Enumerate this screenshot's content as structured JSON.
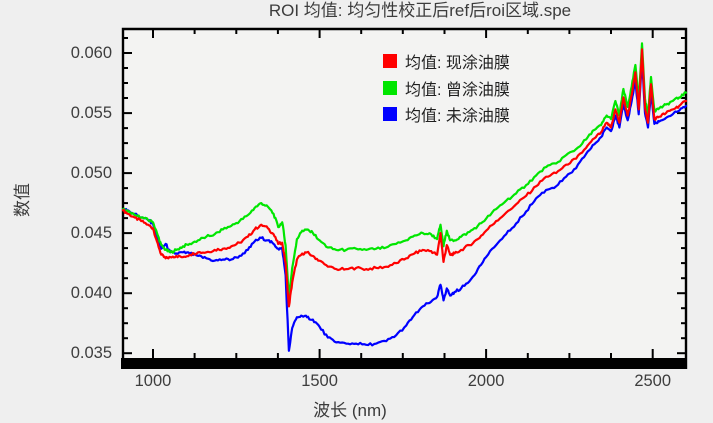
{
  "chart_data": {
    "type": "line",
    "title": "ROI 均值: 均匀性校正后ref后roi区域.spe",
    "xlabel": "波长 (nm)",
    "ylabel": "数值",
    "xlim": [
      910,
      2600
    ],
    "ylim": [
      0.0346,
      0.062
    ],
    "x_ticks": [
      1000,
      1500,
      2000,
      2500
    ],
    "x_tick_labels": [
      "1000",
      "1500",
      "2000",
      "2500"
    ],
    "x_minor_step": 125,
    "y_ticks": [
      0.06,
      0.055,
      0.05,
      0.045,
      0.04,
      0.035
    ],
    "y_tick_labels": [
      "0.060",
      "0.055",
      "0.050",
      "0.045",
      "0.040",
      "0.035"
    ],
    "y_minor_step": 0.00125,
    "grid": false,
    "legend_position": "top-right-inside",
    "background": "#efefef",
    "plot_background": "#f3f3f2",
    "axis_color": "#000000",
    "draw_order": [
      2,
      1,
      0
    ],
    "x": [
      910,
      925,
      945,
      965,
      985,
      1000,
      1012,
      1025,
      1038,
      1052,
      1070,
      1090,
      1110,
      1135,
      1160,
      1185,
      1210,
      1235,
      1260,
      1285,
      1305,
      1325,
      1345,
      1362,
      1376,
      1388,
      1398,
      1408,
      1418,
      1432,
      1448,
      1462,
      1480,
      1500,
      1525,
      1550,
      1580,
      1610,
      1640,
      1670,
      1700,
      1730,
      1760,
      1785,
      1810,
      1835,
      1853,
      1863,
      1872,
      1882,
      1892,
      1905,
      1925,
      1950,
      1975,
      2000,
      2030,
      2060,
      2090,
      2120,
      2150,
      2180,
      2210,
      2240,
      2270,
      2300,
      2325,
      2345,
      2362,
      2375,
      2388,
      2400,
      2412,
      2425,
      2437,
      2448,
      2458,
      2468,
      2477,
      2486,
      2495,
      2505,
      2520,
      2540,
      2560,
      2580,
      2600
    ],
    "series": [
      {
        "name": "均值: 现涂油膜",
        "color": "#ff0000",
        "values": [
          0.0469,
          0.0466,
          0.0463,
          0.046,
          0.0457,
          0.0454,
          0.0443,
          0.0432,
          0.0429,
          0.043,
          0.0431,
          0.043,
          0.0432,
          0.0434,
          0.0434,
          0.0436,
          0.0437,
          0.0439,
          0.0442,
          0.0447,
          0.0453,
          0.0457,
          0.0454,
          0.0449,
          0.0441,
          0.0442,
          0.0425,
          0.0389,
          0.0409,
          0.0428,
          0.0433,
          0.0434,
          0.0431,
          0.0427,
          0.0422,
          0.042,
          0.042,
          0.0421,
          0.042,
          0.0421,
          0.0422,
          0.0425,
          0.0429,
          0.0433,
          0.0436,
          0.0435,
          0.0432,
          0.045,
          0.0426,
          0.044,
          0.0432,
          0.0433,
          0.0436,
          0.044,
          0.0445,
          0.0452,
          0.046,
          0.0467,
          0.0474,
          0.0481,
          0.0489,
          0.0497,
          0.05,
          0.0507,
          0.0512,
          0.0521,
          0.0529,
          0.0534,
          0.0542,
          0.0538,
          0.0553,
          0.0542,
          0.0563,
          0.0548,
          0.0565,
          0.0584,
          0.0553,
          0.0603,
          0.0555,
          0.0542,
          0.0574,
          0.0545,
          0.0547,
          0.055,
          0.0553,
          0.0556,
          0.056
        ]
      },
      {
        "name": "均值: 曾涂油膜",
        "color": "#00e600",
        "values": [
          0.047,
          0.0468,
          0.0465,
          0.0463,
          0.0461,
          0.0459,
          0.045,
          0.044,
          0.0436,
          0.0434,
          0.0436,
          0.0439,
          0.0441,
          0.0444,
          0.0447,
          0.0449,
          0.0453,
          0.0456,
          0.046,
          0.0465,
          0.0471,
          0.0475,
          0.0472,
          0.0466,
          0.0455,
          0.0459,
          0.044,
          0.0396,
          0.0421,
          0.0445,
          0.0452,
          0.0453,
          0.045,
          0.0444,
          0.0438,
          0.0436,
          0.0436,
          0.0437,
          0.0436,
          0.0437,
          0.0438,
          0.0441,
          0.0444,
          0.0448,
          0.045,
          0.0449,
          0.0445,
          0.0457,
          0.0439,
          0.0452,
          0.0444,
          0.0444,
          0.0447,
          0.0451,
          0.0456,
          0.0462,
          0.047,
          0.0477,
          0.0483,
          0.049,
          0.0498,
          0.0505,
          0.0508,
          0.0515,
          0.052,
          0.0528,
          0.0536,
          0.054,
          0.0548,
          0.0545,
          0.056,
          0.0548,
          0.057,
          0.0555,
          0.0572,
          0.059,
          0.056,
          0.0608,
          0.0562,
          0.0548,
          0.058,
          0.0552,
          0.0554,
          0.0557,
          0.056,
          0.0563,
          0.0567
        ]
      },
      {
        "name": "均值: 未涂油膜",
        "color": "#0000ff",
        "values": [
          0.047,
          0.0469,
          0.0466,
          0.0463,
          0.0461,
          0.0458,
          0.0447,
          0.0437,
          0.0441,
          0.0434,
          0.0433,
          0.0434,
          0.0433,
          0.0431,
          0.0429,
          0.0427,
          0.0428,
          0.0428,
          0.0431,
          0.0436,
          0.0443,
          0.0446,
          0.0444,
          0.0441,
          0.0437,
          0.0437,
          0.0415,
          0.0352,
          0.0371,
          0.038,
          0.0381,
          0.038,
          0.0378,
          0.0372,
          0.0363,
          0.0359,
          0.0358,
          0.0358,
          0.0357,
          0.0358,
          0.036,
          0.0365,
          0.0373,
          0.0382,
          0.0389,
          0.0393,
          0.0397,
          0.0407,
          0.0394,
          0.0404,
          0.0398,
          0.0401,
          0.0404,
          0.041,
          0.042,
          0.043,
          0.044,
          0.0449,
          0.0458,
          0.0468,
          0.0479,
          0.0486,
          0.0489,
          0.0497,
          0.0504,
          0.0516,
          0.0524,
          0.053,
          0.0538,
          0.0535,
          0.0548,
          0.0538,
          0.0557,
          0.0544,
          0.056,
          0.0577,
          0.0549,
          0.0595,
          0.055,
          0.0538,
          0.0568,
          0.0541,
          0.0543,
          0.0546,
          0.0549,
          0.0552,
          0.0556
        ]
      }
    ]
  }
}
